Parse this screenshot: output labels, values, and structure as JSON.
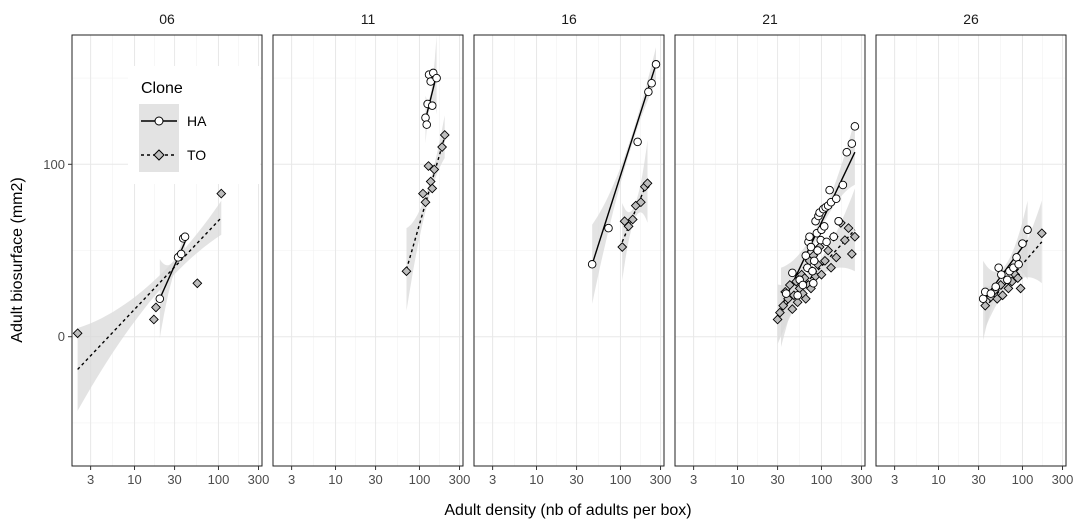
{
  "chart_data": {
    "type": "scatter",
    "x_scale": "log",
    "xlabel": "Adult density (nb of adults per box)",
    "ylabel": "Adult biosurface (mm2)",
    "xlim": [
      1.8,
      330
    ],
    "ylim": [
      -75,
      175
    ],
    "x_ticks": [
      3,
      10,
      30,
      100,
      300
    ],
    "x_tick_labels": [
      "3",
      "10",
      "30",
      "100",
      "300"
    ],
    "y_ticks": [
      0,
      100
    ],
    "y_tick_labels": [
      "0",
      "100"
    ],
    "grid": true,
    "legend": {
      "title": "Clone",
      "position": "inside-top-left",
      "entries": [
        {
          "label": "HA",
          "marker": "circle",
          "line": "solid"
        },
        {
          "label": "TO",
          "marker": "diamond",
          "line": "dashed"
        }
      ]
    },
    "colors": {
      "HA_fill": "#ffffff",
      "TO_fill": "#bdbdbd",
      "ribbon": "#d9d9d9",
      "stroke": "#000000"
    },
    "panels": [
      {
        "label": "06",
        "series": [
          {
            "name": "HA",
            "x": [
              20,
              33,
              36,
              38,
              40
            ],
            "y": [
              22,
              46,
              48,
              57,
              58
            ],
            "fit": {
              "x": [
                20,
                40
              ],
              "y": [
                22,
                55
              ]
            }
          },
          {
            "name": "TO",
            "x": [
              2.1,
              17,
              18,
              34,
              56,
              82,
              108
            ],
            "y": [
              2,
              10,
              17,
              47,
              31,
              92,
              83
            ],
            "fit": {
              "x": [
                2.1,
                108
              ],
              "y": [
                -19,
                69
              ]
            }
          }
        ]
      },
      {
        "label": "11",
        "series": [
          {
            "name": "HA",
            "x": [
              118,
              122,
              125,
              130,
              136,
              142,
              146,
              160
            ],
            "y": [
              127,
              123,
              135,
              152,
              148,
              134,
              153,
              150
            ],
            "fit": {
              "x": [
                118,
                160
              ],
              "y": [
                126,
                152
              ]
            }
          },
          {
            "name": "TO",
            "x": [
              70,
              110,
              118,
              128,
              136,
              142,
              150,
              186,
              200
            ],
            "y": [
              38,
              83,
              78,
              99,
              90,
              86,
              97,
              110,
              117
            ],
            "fit": {
              "x": [
                70,
                200
              ],
              "y": [
                39,
                116
              ]
            }
          }
        ]
      },
      {
        "label": "16",
        "series": [
          {
            "name": "HA",
            "x": [
              46,
              72,
              160,
              215,
              235,
              265
            ],
            "y": [
              42,
              63,
              113,
              142,
              147,
              158
            ],
            "fit": {
              "x": [
                46,
                265
              ],
              "y": [
                42,
                158
              ]
            }
          },
          {
            "name": "TO",
            "x": [
              105,
              112,
              125,
              140,
              152,
              175,
              195,
              210
            ],
            "y": [
              52,
              67,
              64,
              68,
              76,
              78,
              87,
              89
            ],
            "fit": {
              "x": [
                105,
                210
              ],
              "y": [
                55,
                90
              ]
            }
          }
        ]
      },
      {
        "label": "21",
        "series": [
          {
            "name": "HA",
            "x": [
              38,
              45,
              52,
              55,
              60,
              65,
              68,
              70,
              72,
              75,
              78,
              80,
              82,
              85,
              88,
              90,
              92,
              95,
              98,
              100,
              105,
              108,
              112,
              115,
              120,
              125,
              130,
              140,
              150,
              160,
              180,
              200,
              230,
              250
            ],
            "y": [
              25,
              37,
              24,
              33,
              30,
              47,
              40,
              55,
              58,
              52,
              38,
              31,
              44,
              67,
              60,
              50,
              70,
              72,
              56,
              62,
              74,
              64,
              75,
              55,
              76,
              85,
              78,
              58,
              80,
              67,
              88,
              107,
              112,
              122
            ],
            "fit": {
              "x": [
                33,
                250
              ],
              "y": [
                17,
                107
              ]
            }
          },
          {
            "name": "TO",
            "x": [
              30,
              32,
              35,
              37,
              40,
              42,
              45,
              47,
              50,
              52,
              55,
              58,
              60,
              63,
              65,
              68,
              70,
              72,
              75,
              78,
              80,
              85,
              90,
              95,
              100,
              110,
              120,
              130,
              140,
              150,
              170,
              190,
              210,
              230,
              250
            ],
            "y": [
              10,
              14,
              18,
              26,
              22,
              30,
              16,
              24,
              32,
              20,
              28,
              36,
              25,
              34,
              22,
              40,
              30,
              44,
              28,
              38,
              47,
              35,
              42,
              52,
              36,
              44,
              50,
              40,
              58,
              46,
              66,
              56,
              63,
              48,
              58
            ],
            "fit": {
              "x": [
                30,
                250
              ],
              "y": [
                13,
                62
              ]
            }
          }
        ]
      },
      {
        "label": "26",
        "series": [
          {
            "name": "HA",
            "x": [
              34,
              36,
              42,
              48,
              52,
              56,
              66,
              70,
              78,
              85,
              90,
              100,
              115
            ],
            "y": [
              22,
              26,
              25,
              29,
              40,
              36,
              33,
              38,
              40,
              46,
              42,
              54,
              62
            ],
            "fit": {
              "x": [
                34,
                115
              ],
              "y": [
                21,
                56
              ]
            }
          },
          {
            "name": "TO",
            "x": [
              36,
              42,
              47,
              50,
              55,
              58,
              68,
              75,
              82,
              88,
              95,
              170
            ],
            "y": [
              18,
              23,
              27,
              22,
              30,
              24,
              28,
              32,
              36,
              34,
              28,
              60
            ],
            "fit": {
              "x": [
                36,
                170
              ],
              "y": [
                17,
                55
              ]
            }
          }
        ]
      }
    ]
  }
}
